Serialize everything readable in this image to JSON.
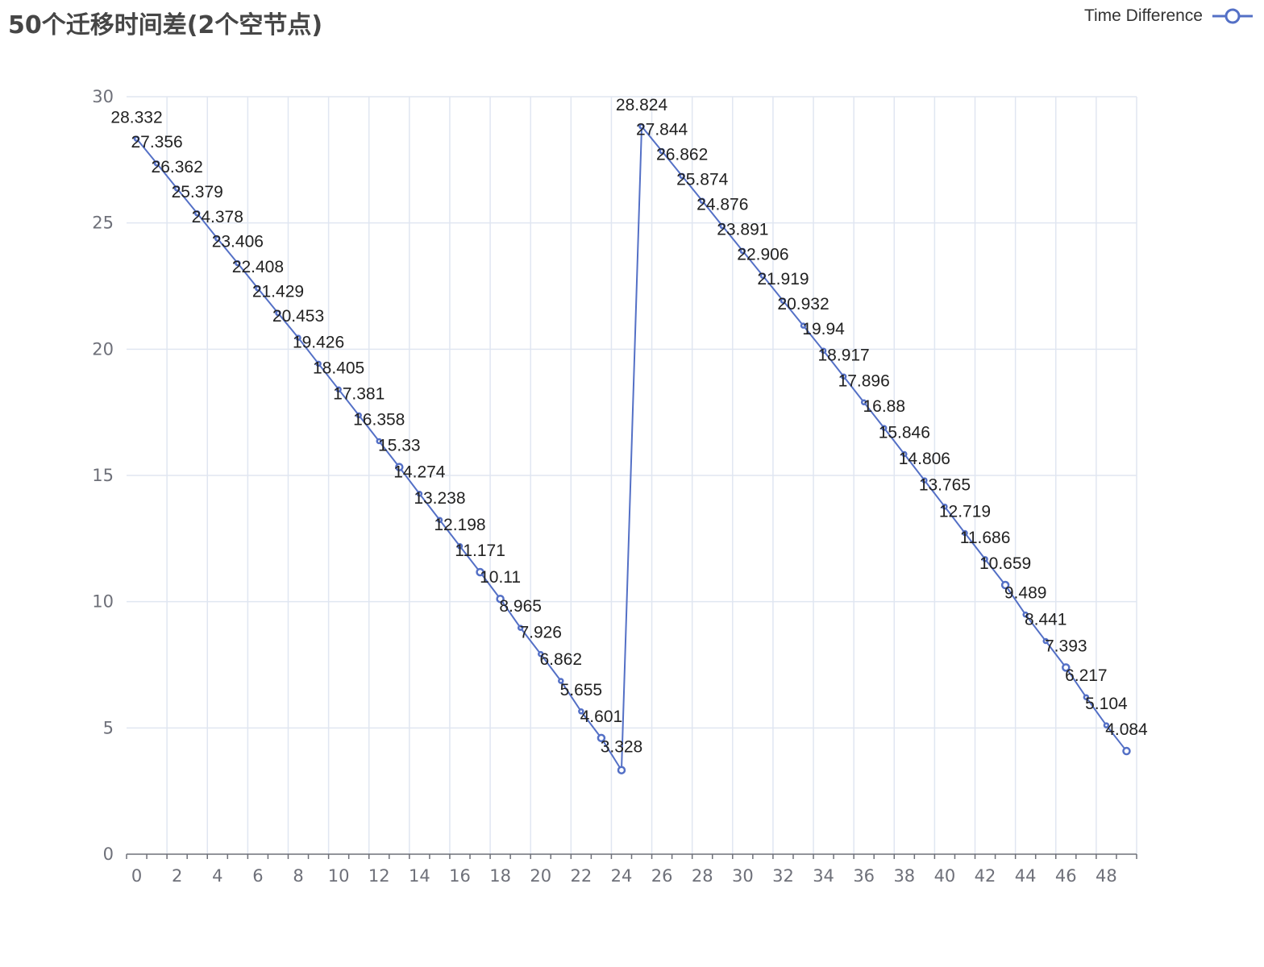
{
  "title": "50个迁移时间差(2个空节点)",
  "legend": {
    "label": "Time Difference"
  },
  "colors": {
    "series": "#5470c6",
    "grid": "#e0e6f1",
    "axis": "#6e7079"
  },
  "chart_data": {
    "type": "line",
    "title": "50个迁移时间差(2个空节点)",
    "series": [
      {
        "name": "Time Difference",
        "values": [
          28.332,
          27.356,
          26.362,
          25.379,
          24.378,
          23.406,
          22.408,
          21.429,
          20.453,
          19.426,
          18.405,
          17.381,
          16.358,
          15.33,
          14.274,
          13.238,
          12.198,
          11.171,
          10.11,
          8.965,
          7.926,
          6.862,
          5.655,
          4.601,
          3.328,
          28.824,
          27.844,
          26.862,
          25.874,
          24.876,
          23.891,
          22.906,
          21.919,
          20.932,
          19.94,
          18.917,
          17.896,
          16.88,
          15.846,
          14.806,
          13.765,
          12.719,
          11.686,
          10.659,
          9.489,
          8.441,
          7.393,
          6.217,
          5.104,
          4.084
        ]
      }
    ],
    "x": [
      0,
      1,
      2,
      3,
      4,
      5,
      6,
      7,
      8,
      9,
      10,
      11,
      12,
      13,
      14,
      15,
      16,
      17,
      18,
      19,
      20,
      21,
      22,
      23,
      24,
      25,
      26,
      27,
      28,
      29,
      30,
      31,
      32,
      33,
      34,
      35,
      36,
      37,
      38,
      39,
      40,
      41,
      42,
      43,
      44,
      45,
      46,
      47,
      48,
      49
    ],
    "xticks": [
      0,
      2,
      4,
      6,
      8,
      10,
      12,
      14,
      16,
      18,
      20,
      22,
      24,
      26,
      28,
      30,
      32,
      34,
      36,
      38,
      40,
      42,
      44,
      46,
      48
    ],
    "yticks": [
      0,
      5,
      10,
      15,
      20,
      25,
      30
    ],
    "ylim": [
      0,
      30
    ],
    "grid": true,
    "legend_position": "top-right"
  }
}
